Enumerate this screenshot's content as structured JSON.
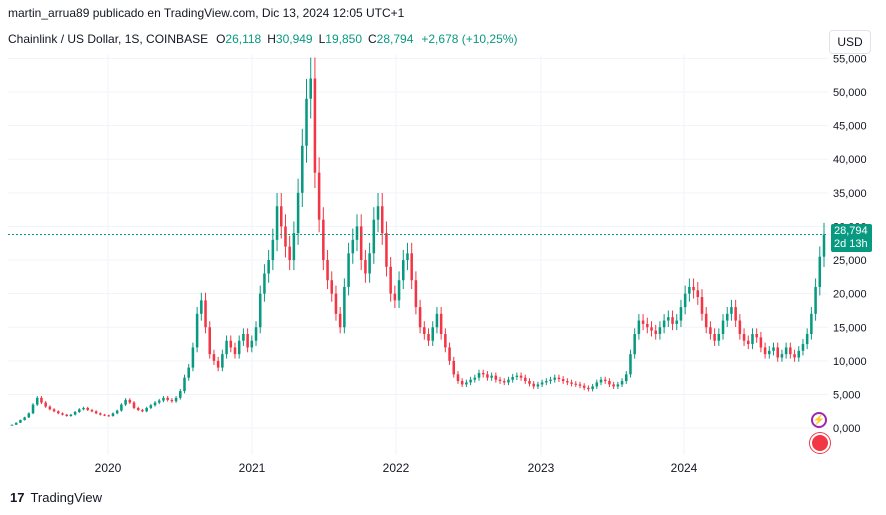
{
  "header": {
    "publisher_line": "martin_arrua89 publicado en TradingView.com, Dic 13, 2024 12:05 UTC+1"
  },
  "legend": {
    "symbol": "Chainlink / US Dollar, 1S, COINBASE",
    "o_label": "O",
    "o_value": "26,118",
    "h_label": "H",
    "h_value": "30,949",
    "l_label": "L",
    "l_value": "19,850",
    "c_label": "C",
    "c_value": "28,794",
    "change": "+2,678 (+10,25%)"
  },
  "currency_button": "USD",
  "price_tag": {
    "price": "28,794",
    "countdown": "2d 13h"
  },
  "footer": {
    "brand": "TradingView"
  },
  "colors": {
    "up": "#089981",
    "down": "#f23645",
    "last_line": "#089981"
  },
  "chart_data": {
    "type": "candlestick",
    "y_axis_labels": [
      "55,000",
      "50,000",
      "45,000",
      "40,000",
      "35,000",
      "30,000",
      "25,000",
      "20,000",
      "15,000",
      "10,000",
      "5,000",
      "0,000"
    ],
    "ylim": [
      -4,
      55.5
    ],
    "x_axis_labels": [
      "2020",
      "2021",
      "2022",
      "2023",
      "2024"
    ],
    "last_price": 28.794,
    "series": [
      {
        "name": "Chainlink / US Dollar",
        "values": [
          0.5,
          0.8,
          1.2,
          1.6,
          2.2,
          3.5,
          4.5,
          3.8,
          3.2,
          2.8,
          2.5,
          2.2,
          2.0,
          1.8,
          2.0,
          2.4,
          2.8,
          3.0,
          2.7,
          2.5,
          2.2,
          2.0,
          1.9,
          1.8,
          2.2,
          2.6,
          3.5,
          4.2,
          3.8,
          3.0,
          2.7,
          2.5,
          3.0,
          3.4,
          3.8,
          4.1,
          4.5,
          4.2,
          4.0,
          4.5,
          5.5,
          7.5,
          9.0,
          12.0,
          17.0,
          19.0,
          15.0,
          11.0,
          10.0,
          9.0,
          11.0,
          13.0,
          12.0,
          11.0,
          13.0,
          14.0,
          12.0,
          13.0,
          15.0,
          20.0,
          23.0,
          25.0,
          28.0,
          33.0,
          30.0,
          27.0,
          25.0,
          29.0,
          35.0,
          42.0,
          49.0,
          52.0,
          38.0,
          31.0,
          25.0,
          22.0,
          20.0,
          17.0,
          15.0,
          21.0,
          26.0,
          28.0,
          30.0,
          25.0,
          23.0,
          26.0,
          31.0,
          33.0,
          29.0,
          24.0,
          20.0,
          19.0,
          22.0,
          25.0,
          26.0,
          22.0,
          18.0,
          15.0,
          14.0,
          13.0,
          15.0,
          17.0,
          14.0,
          12.0,
          10.0,
          8.0,
          7.0,
          6.5,
          6.8,
          7.2,
          7.5,
          8.2,
          8.0,
          7.5,
          7.8,
          7.2,
          7.0,
          6.8,
          7.2,
          7.6,
          7.8,
          7.5,
          7.0,
          6.6,
          6.2,
          6.5,
          6.8,
          7.0,
          7.2,
          7.5,
          7.3,
          7.0,
          6.8,
          6.6,
          6.5,
          6.3,
          6.0,
          5.8,
          6.2,
          6.8,
          7.2,
          7.0,
          6.5,
          6.2,
          6.5,
          7.0,
          8.0,
          11.0,
          14.0,
          16.0,
          15.5,
          15.0,
          14.5,
          14.0,
          15.0,
          16.0,
          16.5,
          15.5,
          16.0,
          18.0,
          20.0,
          21.0,
          20.5,
          19.5,
          17.0,
          15.0,
          14.0,
          13.0,
          14.0,
          16.0,
          17.0,
          18.0,
          16.0,
          14.0,
          13.0,
          12.5,
          14.0,
          13.5,
          12.0,
          11.0,
          11.5,
          12.0,
          10.5,
          11.0,
          12.0,
          11.0,
          10.5,
          11.5,
          12.5,
          14.0,
          17.0,
          21.0,
          25.5,
          28.8
        ]
      }
    ]
  }
}
